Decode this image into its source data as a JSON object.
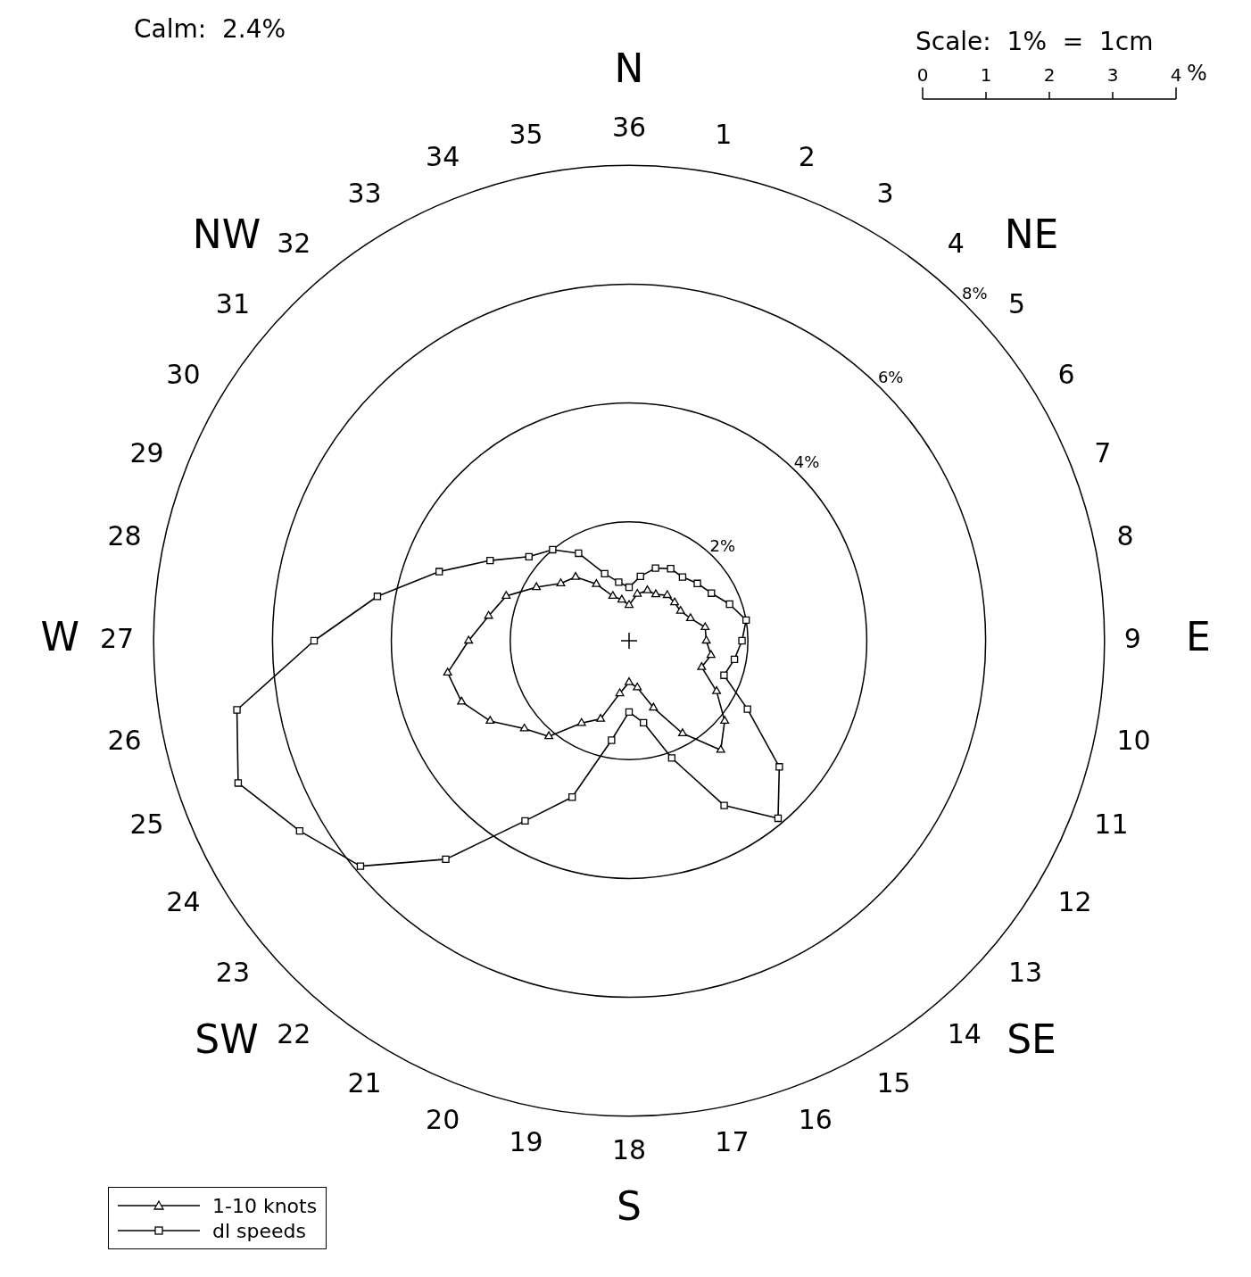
{
  "chart_data": {
    "type": "radar",
    "categories": [
      "36",
      "1",
      "2",
      "3",
      "4",
      "5",
      "6",
      "7",
      "8",
      "9",
      "10",
      "11",
      "12",
      "13",
      "14",
      "15",
      "16",
      "17",
      "18",
      "19",
      "20",
      "21",
      "22",
      "23",
      "24",
      "25",
      "26",
      "27",
      "28",
      "29",
      "30",
      "31",
      "32",
      "33",
      "34",
      "35"
    ],
    "series": [
      {
        "name": "1-10 knots",
        "color": "#000000",
        "marker": "triangle",
        "values": [
          0.6,
          0.8,
          0.9,
          0.9,
          1.0,
          1.0,
          1.0,
          1.1,
          1.3,
          1.3,
          1.4,
          1.3,
          1.7,
          2.1,
          2.4,
          1.8,
          1.2,
          0.8,
          0.7,
          0.9,
          1.4,
          1.6,
          2.1,
          2.3,
          2.7,
          3.0,
          3.1,
          2.7,
          2.4,
          2.2,
          1.8,
          1.5,
          1.4,
          1.1,
          0.8,
          0.7
        ]
      },
      {
        "name": "dl speeds",
        "color": "#000000",
        "marker": "square",
        "values": [
          0.9,
          1.1,
          1.3,
          1.4,
          1.4,
          1.5,
          1.6,
          1.8,
          2.0,
          1.9,
          1.8,
          1.7,
          2.3,
          3.3,
          3.9,
          3.2,
          2.1,
          1.4,
          1.2,
          1.7,
          2.8,
          3.5,
          4.8,
          5.9,
          6.4,
          7.0,
          6.7,
          5.3,
          4.3,
          3.4,
          2.7,
          2.2,
          2.0,
          1.7,
          1.2,
          1.0
        ]
      }
    ],
    "ylim": [
      0,
      8
    ],
    "yticks": [
      {
        "value": 2,
        "label": "2%"
      },
      {
        "value": 4,
        "label": "4%"
      },
      {
        "value": 6,
        "label": "6%"
      },
      {
        "value": 8,
        "label": "8%"
      }
    ],
    "grid": true,
    "legend": "bottom left",
    "line_style": "solid",
    "annotations": [
      "Calm:  2.4%",
      "Scale:  1%  =  1cm",
      "0",
      "1",
      "2",
      "3",
      "4",
      "%",
      "N",
      "NE",
      "E",
      "SE",
      "S",
      "SW",
      "W",
      "NW"
    ]
  }
}
